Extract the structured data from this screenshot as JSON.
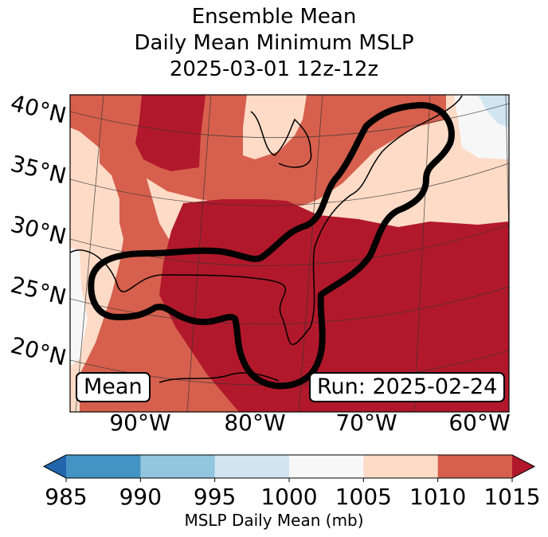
{
  "title": {
    "line1": "Ensemble Mean",
    "line2": "Daily Mean Minimum MSLP",
    "line3": "2025-03-01 12z-12z"
  },
  "map": {
    "lat_labels": [
      "40°N",
      "35°N",
      "30°N",
      "25°N",
      "20°N"
    ],
    "lon_labels": [
      "90°W",
      "80°W",
      "70°W",
      "60°W"
    ],
    "mean_box": "Mean",
    "run_box": "Run: 2025-02-24",
    "field_description": "Mostly 1010-1015 mb over Gulf of Mexico, Southeast US and western Atlantic; 1005-1010 mb over central US and New England; 1000-1005 mb near Great Lakes; 995-1000 mb over Newfoundland",
    "outline_description": "Thick black contour enclosing Gulf of Mexico, Florida and US East Coast northeast to Nova Scotia"
  },
  "colorbar": {
    "label": "MSLP Daily Mean (mb)",
    "ticks": [
      "985",
      "990",
      "995",
      "1000",
      "1005",
      "1010",
      "1015"
    ],
    "colors": [
      "#2166ac",
      "#4393c3",
      "#92c5de",
      "#d1e5f0",
      "#f7f7f7",
      "#fddbc7",
      "#d6604d",
      "#b2182b"
    ],
    "extend": "both"
  },
  "chart_data": {
    "type": "heatmap",
    "title": "Ensemble Mean Daily Mean Minimum MSLP 2025-03-01 12z-12z",
    "colorbar_label": "MSLP Daily Mean (mb)",
    "levels": [
      985,
      990,
      995,
      1000,
      1005,
      1010,
      1015
    ],
    "lat_ticks": [
      40,
      35,
      30,
      25,
      20
    ],
    "lon_ticks": [
      -90,
      -80,
      -70,
      -60
    ],
    "annotations": [
      "Mean",
      "Run: 2025-02-24"
    ]
  }
}
